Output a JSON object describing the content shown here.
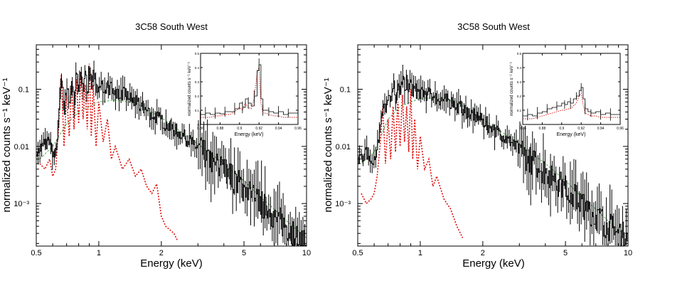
{
  "chart_data": [
    {
      "type": "line",
      "title": "3C58 South West",
      "xlabel": "Energy (keV)",
      "ylabel": "normalized counts s⁻¹ keV⁻¹",
      "xscale": "log",
      "yscale": "log",
      "xlim": [
        0.5,
        10
      ],
      "ylim": [
        0.00018,
        0.6
      ],
      "xticks": [
        "0.5",
        "1",
        "2",
        "5",
        "10"
      ],
      "xtick_values": [
        0.5,
        1,
        2,
        5,
        10
      ],
      "yticks": [
        "0.1",
        "0.01",
        "10⁻³"
      ],
      "ytick_values": [
        0.1,
        0.01,
        0.001
      ],
      "series": [
        {
          "role": "data",
          "color": "#000000",
          "x": [
            0.52,
            0.55,
            0.58,
            0.6,
            0.62,
            0.64,
            0.66,
            0.68,
            0.7,
            0.72,
            0.74,
            0.76,
            0.78,
            0.8,
            0.82,
            0.84,
            0.86,
            0.88,
            0.9,
            0.92,
            0.94,
            0.97,
            1.0,
            1.05,
            1.1,
            1.15,
            1.2,
            1.3,
            1.4,
            1.5,
            1.7,
            2.0,
            2.5,
            3.0,
            3.5,
            4.0,
            5.0,
            6.0,
            7.0,
            8.0,
            9.0,
            10.0
          ],
          "y": [
            0.009,
            0.012,
            0.011,
            0.006,
            0.008,
            0.03,
            0.2,
            0.04,
            0.12,
            0.05,
            0.16,
            0.06,
            0.2,
            0.08,
            0.22,
            0.1,
            0.18,
            0.09,
            0.3,
            0.1,
            0.18,
            0.09,
            0.15,
            0.1,
            0.11,
            0.1,
            0.09,
            0.085,
            0.07,
            0.06,
            0.042,
            0.028,
            0.016,
            0.009,
            0.0055,
            0.0038,
            0.0018,
            0.001,
            0.0006,
            0.00038,
            0.00028,
            0.00022
          ]
        },
        {
          "role": "line-emission model",
          "color": "#e01010",
          "x": [
            0.52,
            0.55,
            0.58,
            0.6,
            0.62,
            0.64,
            0.66,
            0.68,
            0.7,
            0.72,
            0.74,
            0.76,
            0.78,
            0.8,
            0.82,
            0.84,
            0.86,
            0.88,
            0.9,
            0.92,
            0.94,
            0.97,
            1.0,
            1.05,
            1.1,
            1.15,
            1.2,
            1.3,
            1.4,
            1.5,
            1.6,
            1.7,
            1.8,
            1.9,
            2.0,
            2.1,
            2.3,
            2.4
          ],
          "y": [
            0.005,
            0.004,
            0.006,
            0.003,
            0.004,
            0.02,
            0.18,
            0.01,
            0.08,
            0.015,
            0.12,
            0.02,
            0.15,
            0.025,
            0.2,
            0.03,
            0.12,
            0.02,
            0.28,
            0.015,
            0.12,
            0.01,
            0.06,
            0.012,
            0.03,
            0.006,
            0.01,
            0.004,
            0.006,
            0.003,
            0.004,
            0.002,
            0.0015,
            0.0022,
            0.0006,
            0.0004,
            0.0003,
            0.00022
          ]
        },
        {
          "role": "continuum model",
          "color": "#5cb85c",
          "x": [
            0.52,
            0.6,
            0.7,
            0.8,
            1.0,
            1.2,
            1.5,
            2.0,
            3.0,
            4.0,
            5.0,
            6.0,
            7.0,
            8.0,
            10.0
          ],
          "y": [
            0.006,
            0.01,
            0.025,
            0.04,
            0.06,
            0.065,
            0.058,
            0.032,
            0.011,
            0.005,
            0.0025,
            0.0013,
            0.0008,
            0.0005,
            0.00025
          ]
        }
      ],
      "inset": {
        "type": "line",
        "xlabel": "Energy (keV)",
        "ylabel": "normalized counts s⁻¹ keV⁻¹",
        "xlim": [
          0.86,
          0.96
        ],
        "ylim": [
          0,
          0.5
        ],
        "xticks": [
          "0.86",
          "0.88",
          "0.9",
          "0.92",
          "0.94",
          "0.96"
        ],
        "xtick_values": [
          0.86,
          0.88,
          0.9,
          0.92,
          0.94,
          0.96
        ],
        "yticks": [
          "0",
          "0.1",
          "0.2",
          "0.3",
          "0.4",
          "0.5"
        ],
        "ytick_values": [
          0,
          0.1,
          0.2,
          0.3,
          0.4,
          0.5
        ],
        "x": [
          0.86,
          0.865,
          0.87,
          0.875,
          0.88,
          0.885,
          0.89,
          0.895,
          0.9,
          0.903,
          0.906,
          0.909,
          0.912,
          0.915,
          0.918,
          0.92,
          0.922,
          0.924,
          0.927,
          0.93,
          0.935,
          0.94,
          0.945,
          0.95,
          0.955,
          0.96
        ],
        "y": [
          0.07,
          0.08,
          0.07,
          0.08,
          0.075,
          0.09,
          0.09,
          0.11,
          0.15,
          0.12,
          0.18,
          0.15,
          0.13,
          0.2,
          0.38,
          0.42,
          0.18,
          0.1,
          0.1,
          0.09,
          0.08,
          0.09,
          0.07,
          0.08,
          0.08,
          0.06
        ],
        "model_y": [
          0.05,
          0.05,
          0.05,
          0.06,
          0.06,
          0.07,
          0.07,
          0.09,
          0.12,
          0.1,
          0.15,
          0.12,
          0.11,
          0.18,
          0.36,
          0.4,
          0.15,
          0.08,
          0.08,
          0.07,
          0.06,
          0.06,
          0.05,
          0.05,
          0.05,
          0.05
        ]
      }
    },
    {
      "type": "line",
      "title": "3C58 South West",
      "xlabel": "Energy (keV)",
      "ylabel": "normalized counts s⁻¹ keV⁻¹",
      "xscale": "log",
      "yscale": "log",
      "xlim": [
        0.5,
        10
      ],
      "ylim": [
        0.00018,
        0.6
      ],
      "xticks": [
        "0.5",
        "1",
        "2",
        "5",
        "10"
      ],
      "xtick_values": [
        0.5,
        1,
        2,
        5,
        10
      ],
      "yticks": [
        "0.1",
        "0.01",
        "10⁻³"
      ],
      "ytick_values": [
        0.1,
        0.01,
        0.001
      ],
      "series": [
        {
          "role": "data",
          "color": "#000000",
          "x": [
            0.52,
            0.55,
            0.58,
            0.6,
            0.62,
            0.64,
            0.66,
            0.68,
            0.7,
            0.72,
            0.74,
            0.76,
            0.78,
            0.8,
            0.82,
            0.84,
            0.86,
            0.88,
            0.9,
            0.92,
            0.94,
            0.97,
            1.0,
            1.05,
            1.1,
            1.15,
            1.2,
            1.3,
            1.4,
            1.5,
            1.7,
            2.0,
            2.5,
            3.0,
            3.5,
            4.0,
            5.0,
            6.0,
            7.0,
            8.0,
            9.0,
            10.0
          ],
          "y": [
            0.006,
            0.008,
            0.005,
            0.006,
            0.009,
            0.02,
            0.06,
            0.04,
            0.1,
            0.06,
            0.14,
            0.07,
            0.13,
            0.08,
            0.18,
            0.09,
            0.14,
            0.09,
            0.16,
            0.09,
            0.1,
            0.085,
            0.09,
            0.085,
            0.08,
            0.075,
            0.07,
            0.065,
            0.06,
            0.052,
            0.04,
            0.027,
            0.015,
            0.0085,
            0.0052,
            0.0036,
            0.0018,
            0.001,
            0.0006,
            0.0004,
            0.0003,
            0.00024
          ]
        },
        {
          "role": "line-emission model",
          "color": "#e01010",
          "x": [
            0.52,
            0.55,
            0.58,
            0.6,
            0.62,
            0.64,
            0.66,
            0.68,
            0.7,
            0.72,
            0.74,
            0.76,
            0.78,
            0.8,
            0.82,
            0.84,
            0.86,
            0.88,
            0.9,
            0.92,
            0.94,
            0.97,
            1.0,
            1.05,
            1.1,
            1.15,
            1.2,
            1.3,
            1.4,
            1.5,
            1.6
          ],
          "y": [
            0.0015,
            0.001,
            0.0012,
            0.0015,
            0.003,
            0.01,
            0.05,
            0.005,
            0.03,
            0.006,
            0.05,
            0.008,
            0.06,
            0.01,
            0.08,
            0.012,
            0.05,
            0.008,
            0.1,
            0.006,
            0.03,
            0.004,
            0.015,
            0.004,
            0.006,
            0.002,
            0.003,
            0.0012,
            0.0008,
            0.0004,
            0.00025
          ]
        },
        {
          "role": "continuum model",
          "color": "#5cb85c",
          "x": [
            0.52,
            0.6,
            0.7,
            0.8,
            1.0,
            1.2,
            1.5,
            2.0,
            3.0,
            4.0,
            5.0,
            6.0,
            7.0,
            8.0,
            10.0
          ],
          "y": [
            0.005,
            0.008,
            0.03,
            0.05,
            0.07,
            0.07,
            0.06,
            0.03,
            0.011,
            0.005,
            0.0025,
            0.0013,
            0.0008,
            0.0005,
            0.00025
          ]
        }
      ],
      "inset": {
        "type": "line",
        "xlabel": "Energy (keV)",
        "ylabel": "normalized counts s⁻¹ keV⁻¹",
        "xlim": [
          0.86,
          0.96
        ],
        "ylim": [
          0,
          0.5
        ],
        "xticks": [
          "0.86",
          "0.88",
          "0.9",
          "0.92",
          "0.94",
          "0.96"
        ],
        "xtick_values": [
          0.86,
          0.88,
          0.9,
          0.92,
          0.94,
          0.96
        ],
        "yticks": [
          "0",
          "0.1",
          "0.2",
          "0.3",
          "0.4",
          "0.5"
        ],
        "ytick_values": [
          0,
          0.1,
          0.2,
          0.3,
          0.4,
          0.5
        ],
        "x": [
          0.86,
          0.865,
          0.87,
          0.875,
          0.88,
          0.885,
          0.89,
          0.895,
          0.9,
          0.903,
          0.906,
          0.909,
          0.912,
          0.915,
          0.918,
          0.92,
          0.922,
          0.924,
          0.927,
          0.93,
          0.935,
          0.94,
          0.945,
          0.95,
          0.955,
          0.96
        ],
        "y": [
          0.06,
          0.07,
          0.06,
          0.08,
          0.09,
          0.11,
          0.12,
          0.13,
          0.15,
          0.14,
          0.16,
          0.15,
          0.18,
          0.2,
          0.24,
          0.26,
          0.18,
          0.11,
          0.09,
          0.08,
          0.09,
          0.07,
          0.08,
          0.07,
          0.07,
          0.06
        ],
        "model_y": [
          0.04,
          0.04,
          0.04,
          0.05,
          0.06,
          0.07,
          0.08,
          0.09,
          0.1,
          0.1,
          0.11,
          0.11,
          0.13,
          0.15,
          0.2,
          0.22,
          0.14,
          0.08,
          0.07,
          0.06,
          0.06,
          0.05,
          0.05,
          0.05,
          0.05,
          0.05
        ]
      }
    }
  ]
}
